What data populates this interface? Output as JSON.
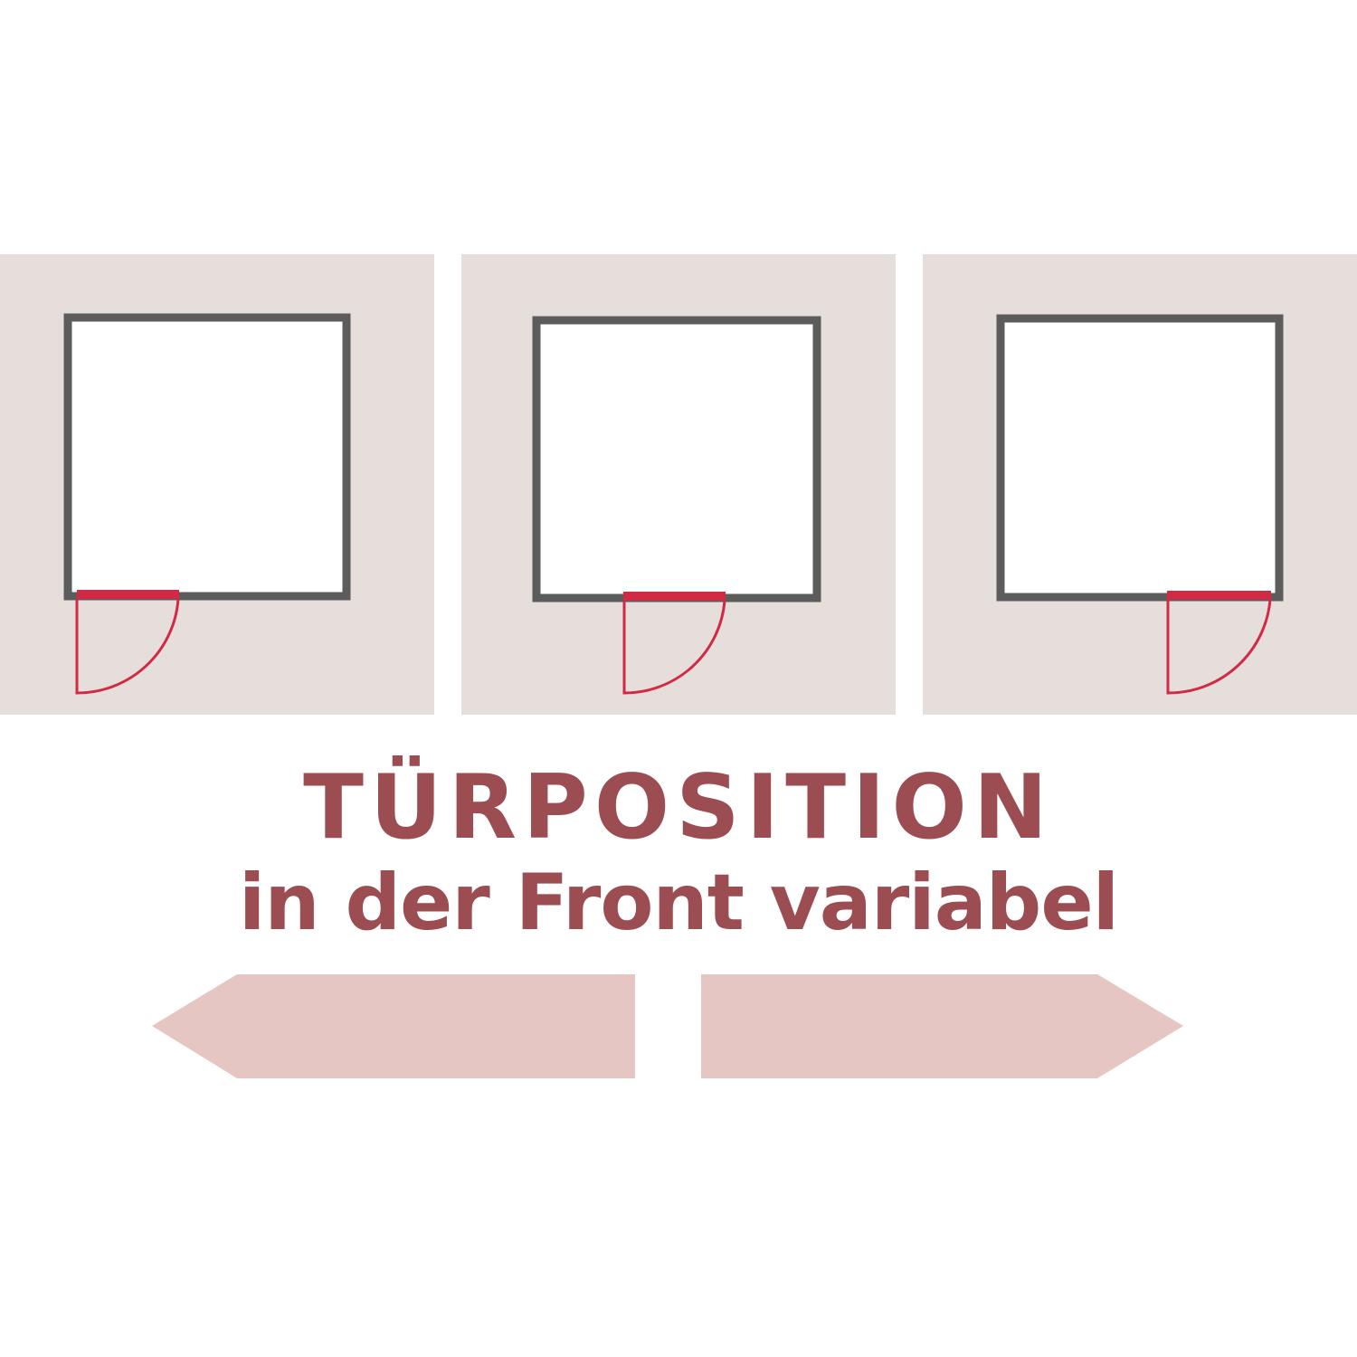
{
  "headline": "TÜRPOSITION",
  "subline": "in der Front variabel",
  "floorplans": [
    {
      "door_position": "left"
    },
    {
      "door_position": "center"
    },
    {
      "door_position": "right"
    }
  ],
  "colors": {
    "panel_background": "#e6deda",
    "wall": "#5c5c5c",
    "door": "#d12a44",
    "text": "#9c4d52",
    "arrow": "#e6c6c3"
  }
}
